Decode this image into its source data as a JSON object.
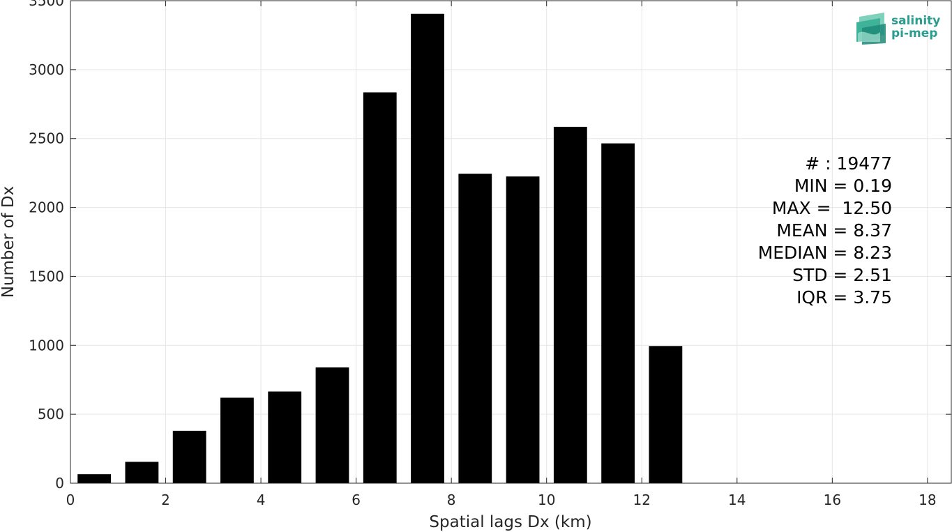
{
  "logo": {
    "line1": "salinity",
    "line2": "pi-mep",
    "color": "#2a9d8f"
  },
  "stats": [
    "# : 19477",
    "MIN = 0.19",
    "MAX =  12.50",
    "MEAN = 8.37",
    "MEDIAN = 8.23",
    "STD = 2.51",
    "IQR = 3.75"
  ],
  "chart_data": {
    "type": "bar",
    "xlabel": "Spatial lags Dx (km)",
    "ylabel": "Number of Dx",
    "xlim": [
      0,
      18.5
    ],
    "ylim": [
      0,
      3500
    ],
    "xticks": [
      0,
      2,
      4,
      6,
      8,
      10,
      12,
      14,
      16,
      18
    ],
    "yticks": [
      0,
      500,
      1000,
      1500,
      2000,
      2500,
      3000,
      3500
    ],
    "bar_width": 0.7,
    "bar_color": "#000000",
    "grid": true,
    "x": [
      0.5,
      1.5,
      2.5,
      3.5,
      4.5,
      5.5,
      6.5,
      7.5,
      8.5,
      9.5,
      10.5,
      11.5,
      12.5
    ],
    "values": [
      65,
      155,
      380,
      620,
      665,
      840,
      2835,
      3405,
      2245,
      2225,
      2585,
      2465,
      995
    ]
  }
}
